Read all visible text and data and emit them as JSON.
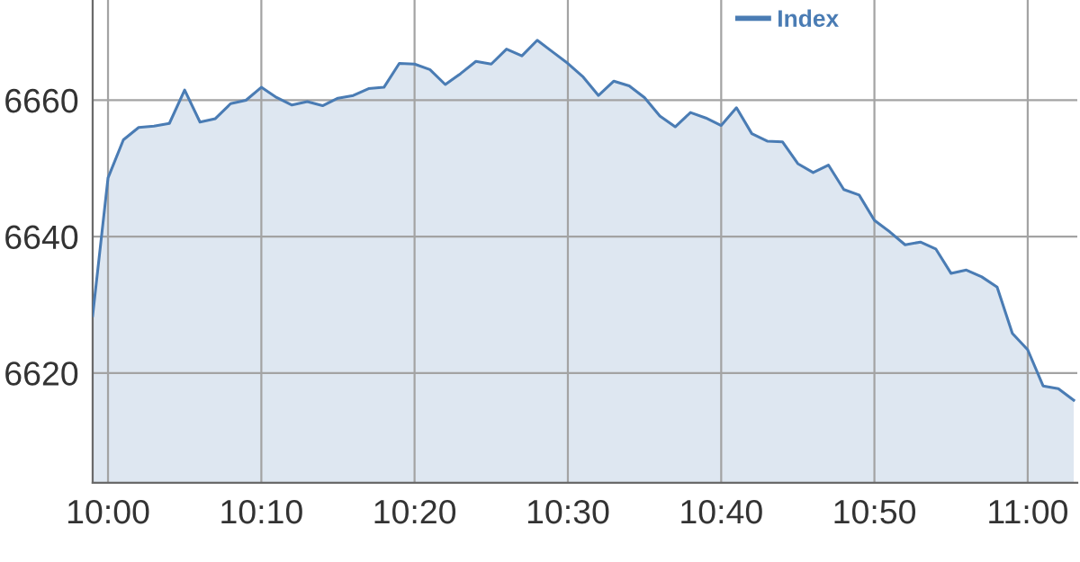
{
  "chart_data": {
    "type": "area",
    "x": [
      9.9833,
      10.0,
      10.0167,
      10.0333,
      10.05,
      10.0667,
      10.0833,
      10.1,
      10.1167,
      10.1333,
      10.15,
      10.1667,
      10.1833,
      10.2,
      10.2167,
      10.2333,
      10.25,
      10.2667,
      10.2833,
      10.3,
      10.3167,
      10.3333,
      10.35,
      10.3667,
      10.3833,
      10.4,
      10.4167,
      10.4333,
      10.45,
      10.4667,
      10.4833,
      10.5,
      10.5167,
      10.5333,
      10.55,
      10.5667,
      10.5833,
      10.6,
      10.6167,
      10.6333,
      10.65,
      10.6667,
      10.6833,
      10.7,
      10.7167,
      10.7333,
      10.75,
      10.7667,
      10.7833,
      10.8,
      10.8167,
      10.8333,
      10.85,
      10.8667,
      10.8833,
      10.9,
      10.9167,
      10.9333,
      10.95,
      10.9667,
      10.9833,
      11.0,
      11.0167,
      11.0333,
      11.05
    ],
    "series": [
      {
        "name": "Index",
        "color": "#4a7cb4",
        "values": [
          6628.4,
          6648.6,
          6654.2,
          6656.0,
          6656.2,
          6656.6,
          6661.5,
          6656.8,
          6657.3,
          6659.5,
          6660.0,
          6661.9,
          6660.4,
          6659.3,
          6659.8,
          6659.2,
          6660.3,
          6660.7,
          6661.7,
          6661.9,
          6665.4,
          6665.3,
          6664.5,
          6662.3,
          6663.9,
          6665.7,
          6665.3,
          6667.5,
          6666.5,
          6668.8,
          6667.1,
          6665.4,
          6663.4,
          6660.7,
          6662.8,
          6662.1,
          6660.4,
          6657.7,
          6656.1,
          6658.2,
          6657.4,
          6656.3,
          6658.9,
          6655.1,
          6654.0,
          6653.9,
          6650.7,
          6649.4,
          6650.5,
          6646.9,
          6646.1,
          6642.4,
          6640.7,
          6638.8,
          6639.2,
          6638.2,
          6634.6,
          6635.1,
          6634.1,
          6632.6,
          6625.8,
          6623.4,
          6618.1,
          6617.7,
          6616.0
        ]
      }
    ],
    "xlim": [
      9.9833,
      11.0539
    ],
    "ylim": [
      6603.9,
      6674.7
    ],
    "xticks": [
      {
        "value": 10.0,
        "label": "10:00"
      },
      {
        "value": 10.1667,
        "label": "10:10"
      },
      {
        "value": 10.3333,
        "label": "10:20"
      },
      {
        "value": 10.5,
        "label": "10:30"
      },
      {
        "value": 10.6667,
        "label": "10:40"
      },
      {
        "value": 10.8333,
        "label": "10:50"
      },
      {
        "value": 11.0,
        "label": "11:00"
      }
    ],
    "yticks": [
      6620,
      6640,
      6660
    ],
    "grid": true,
    "legend": "top right"
  }
}
